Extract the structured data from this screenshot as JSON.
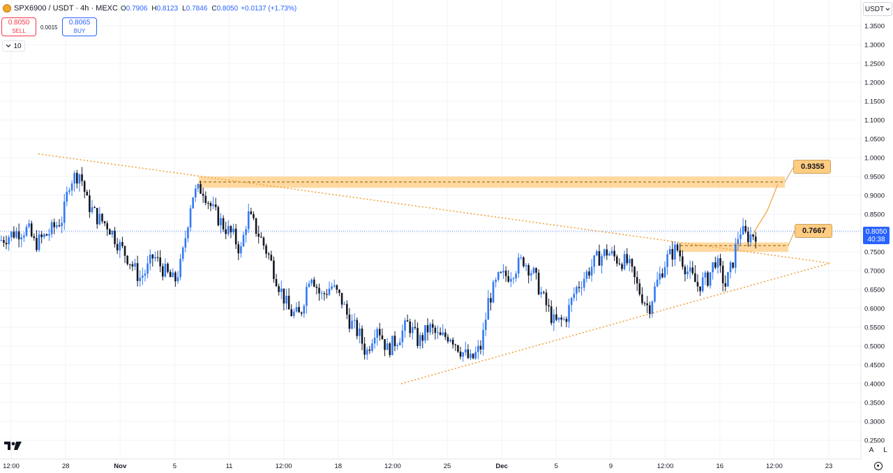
{
  "header": {
    "symbol": "SPX6900 / USDT · 4h · MEXC",
    "open_label": "O",
    "open": "0.7906",
    "high_label": "H",
    "high": "0.8123",
    "low_label": "L",
    "low": "0.7846",
    "close_label": "C",
    "close": "0.8050",
    "change": "+0.0137 (+1.73%)"
  },
  "trade": {
    "sell_price": "0.8050",
    "sell_label": "SELL",
    "spread": "0.0015",
    "buy_price": "0.8065",
    "buy_label": "BUY"
  },
  "interval_control": {
    "value": "10"
  },
  "currency_selector": {
    "value": "USDT"
  },
  "price_badge": {
    "price": "0.8050",
    "countdown": "40:38"
  },
  "scale_buttons": {
    "auto": "A",
    "log": "L"
  },
  "colors": {
    "up_candle": "#3179f5",
    "down_candle": "#131722",
    "zone_fill": "#ffcc80",
    "trendline": "#f2a13a",
    "grid": "#f0f3fa"
  },
  "icons": [
    "coin-logo-icon",
    "chevron-down-icon",
    "tradingview-logo-icon",
    "settings-icon"
  ],
  "chart_data": {
    "type": "candlestick",
    "ylim": [
      0.25,
      1.35
    ],
    "y_ticks": [
      "1.3500",
      "1.3000",
      "1.2500",
      "1.2000",
      "1.1500",
      "1.1000",
      "1.0500",
      "1.0000",
      "0.9500",
      "0.9000",
      "0.8500",
      "0.8000",
      "0.7500",
      "0.7000",
      "0.6500",
      "0.6000",
      "0.5500",
      "0.5000",
      "0.4500",
      "0.4000",
      "0.3500",
      "0.3000",
      "0.2500"
    ],
    "x_ticks": [
      "12:00",
      "28",
      "Nov",
      "5",
      "11",
      "12:00",
      "18",
      "12:00",
      "25",
      "Dec",
      "5",
      "9",
      "12:00",
      "16",
      "12:00",
      "23"
    ],
    "series_path": [
      [
        0,
        0.78
      ],
      [
        0.02,
        0.8
      ],
      [
        0.04,
        0.81
      ],
      [
        0.05,
        0.77
      ],
      [
        0.07,
        0.8
      ],
      [
        0.09,
        0.84
      ],
      [
        0.1,
        0.94
      ],
      [
        0.115,
        0.96
      ],
      [
        0.125,
        0.88
      ],
      [
        0.14,
        0.84
      ],
      [
        0.155,
        0.82
      ],
      [
        0.17,
        0.77
      ],
      [
        0.185,
        0.73
      ],
      [
        0.2,
        0.68
      ],
      [
        0.21,
        0.7
      ],
      [
        0.22,
        0.74
      ],
      [
        0.235,
        0.7
      ],
      [
        0.25,
        0.67
      ],
      [
        0.26,
        0.72
      ],
      [
        0.275,
        0.9
      ],
      [
        0.29,
        0.92
      ],
      [
        0.305,
        0.86
      ],
      [
        0.32,
        0.82
      ],
      [
        0.335,
        0.79
      ],
      [
        0.345,
        0.75
      ],
      [
        0.355,
        0.85
      ],
      [
        0.37,
        0.8
      ],
      [
        0.385,
        0.74
      ],
      [
        0.4,
        0.66
      ],
      [
        0.415,
        0.59
      ],
      [
        0.43,
        0.58
      ],
      [
        0.445,
        0.7
      ],
      [
        0.46,
        0.63
      ],
      [
        0.475,
        0.66
      ],
      [
        0.49,
        0.62
      ],
      [
        0.5,
        0.57
      ],
      [
        0.515,
        0.53
      ],
      [
        0.525,
        0.48
      ],
      [
        0.54,
        0.56
      ],
      [
        0.555,
        0.49
      ],
      [
        0.57,
        0.52
      ],
      [
        0.585,
        0.56
      ],
      [
        0.6,
        0.51
      ],
      [
        0.615,
        0.55
      ],
      [
        0.63,
        0.52
      ],
      [
        0.645,
        0.53
      ],
      [
        0.66,
        0.49
      ],
      [
        0.675,
        0.46
      ],
      [
        0.69,
        0.5
      ],
      [
        0.7,
        0.62
      ],
      [
        0.715,
        0.68
      ],
      [
        0.73,
        0.69
      ],
      [
        0.75,
        0.73
      ],
      [
        0.765,
        0.69
      ],
      [
        0.78,
        0.62
      ],
      [
        0.795,
        0.56
      ],
      [
        0.81,
        0.57
      ],
      [
        0.825,
        0.65
      ],
      [
        0.84,
        0.69
      ],
      [
        0.855,
        0.73
      ],
      [
        0.87,
        0.75
      ],
      [
        0.885,
        0.73
      ],
      [
        0.9,
        0.72
      ],
      [
        0.915,
        0.65
      ],
      [
        0.93,
        0.6
      ],
      [
        0.94,
        0.66
      ],
      [
        0.955,
        0.73
      ],
      [
        0.97,
        0.76
      ],
      [
        0.985,
        0.7
      ],
      [
        1.0,
        0.66
      ],
      [
        1.015,
        0.68
      ],
      [
        1.025,
        0.73
      ],
      [
        1.04,
        0.66
      ],
      [
        1.05,
        0.72
      ],
      [
        1.06,
        0.81
      ],
      [
        1.07,
        0.79
      ],
      [
        1.085,
        0.8
      ]
    ],
    "annotations": {
      "upper_zone": {
        "low": 0.92,
        "high": 0.95,
        "level": 0.9355,
        "label": "0.9355"
      },
      "lower_zone": {
        "low": 0.75,
        "high": 0.775,
        "level": 0.7667,
        "label": "0.7667"
      },
      "descending_trendline": [
        [
          0.055,
          1.01
        ],
        [
          1.19,
          0.72
        ]
      ],
      "ascending_trendline": [
        [
          0.575,
          0.4
        ],
        [
          1.19,
          0.72
        ]
      ],
      "projection_path": [
        [
          1.08,
          0.8
        ],
        [
          1.1,
          0.86
        ],
        [
          1.115,
          0.93
        ]
      ],
      "current_price_line": 0.805
    }
  }
}
